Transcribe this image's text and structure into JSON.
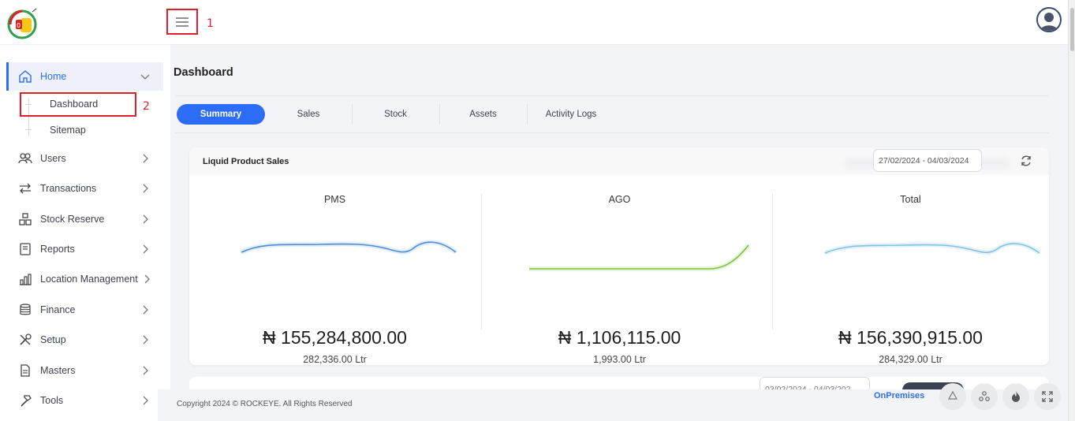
{
  "header": {
    "markers": {
      "one": "1",
      "two": "2"
    }
  },
  "sidebar": {
    "items": [
      {
        "label": "Home",
        "icon": "home-icon"
      },
      {
        "label": "Users",
        "icon": "users-icon"
      },
      {
        "label": "Transactions",
        "icon": "transfer-arrows-icon"
      },
      {
        "label": "Stock Reserve",
        "icon": "boxes-icon"
      },
      {
        "label": "Reports",
        "icon": "report-book-icon"
      },
      {
        "label": "Location Management",
        "icon": "bar-chart-icon"
      },
      {
        "label": "Finance",
        "icon": "coins-icon"
      },
      {
        "label": "Setup",
        "icon": "tools-icon"
      },
      {
        "label": "Masters",
        "icon": "document-icon"
      },
      {
        "label": "Tools",
        "icon": "hammer-icon"
      }
    ],
    "subitems": [
      {
        "label": "Dashboard"
      },
      {
        "label": "Sitemap"
      }
    ]
  },
  "main": {
    "title": "Dashboard",
    "tabs": [
      {
        "label": "Summary"
      },
      {
        "label": "Sales"
      },
      {
        "label": "Stock"
      },
      {
        "label": "Assets"
      },
      {
        "label": "Activity Logs"
      }
    ],
    "card": {
      "title": "Liquid Product Sales",
      "date_range": "27/02/2024 - 04/03/2024",
      "columns": [
        {
          "label": "PMS",
          "value": "₦ 155,284,800.00",
          "volume": "282,336.00 Ltr",
          "color": "#4a8fd6"
        },
        {
          "label": "AGO",
          "value": "₦ 1,106,115.00",
          "volume": "1,993.00 Ltr",
          "color": "#7cc242"
        },
        {
          "label": "Total",
          "value": "₦ 156,390,915.00",
          "volume": "284,329.00 Ltr",
          "color": "#7fc2e6"
        }
      ]
    },
    "card2": {
      "date_range": "03/02/2024 - 04/03/202"
    }
  },
  "footer": {
    "copyright": "Copyright 2024 © ROCKEYE. All Rights Reserved",
    "deployment": "OnPremises"
  },
  "colors": {
    "accent": "#2d6df6",
    "annotation": "#e11d2a"
  }
}
